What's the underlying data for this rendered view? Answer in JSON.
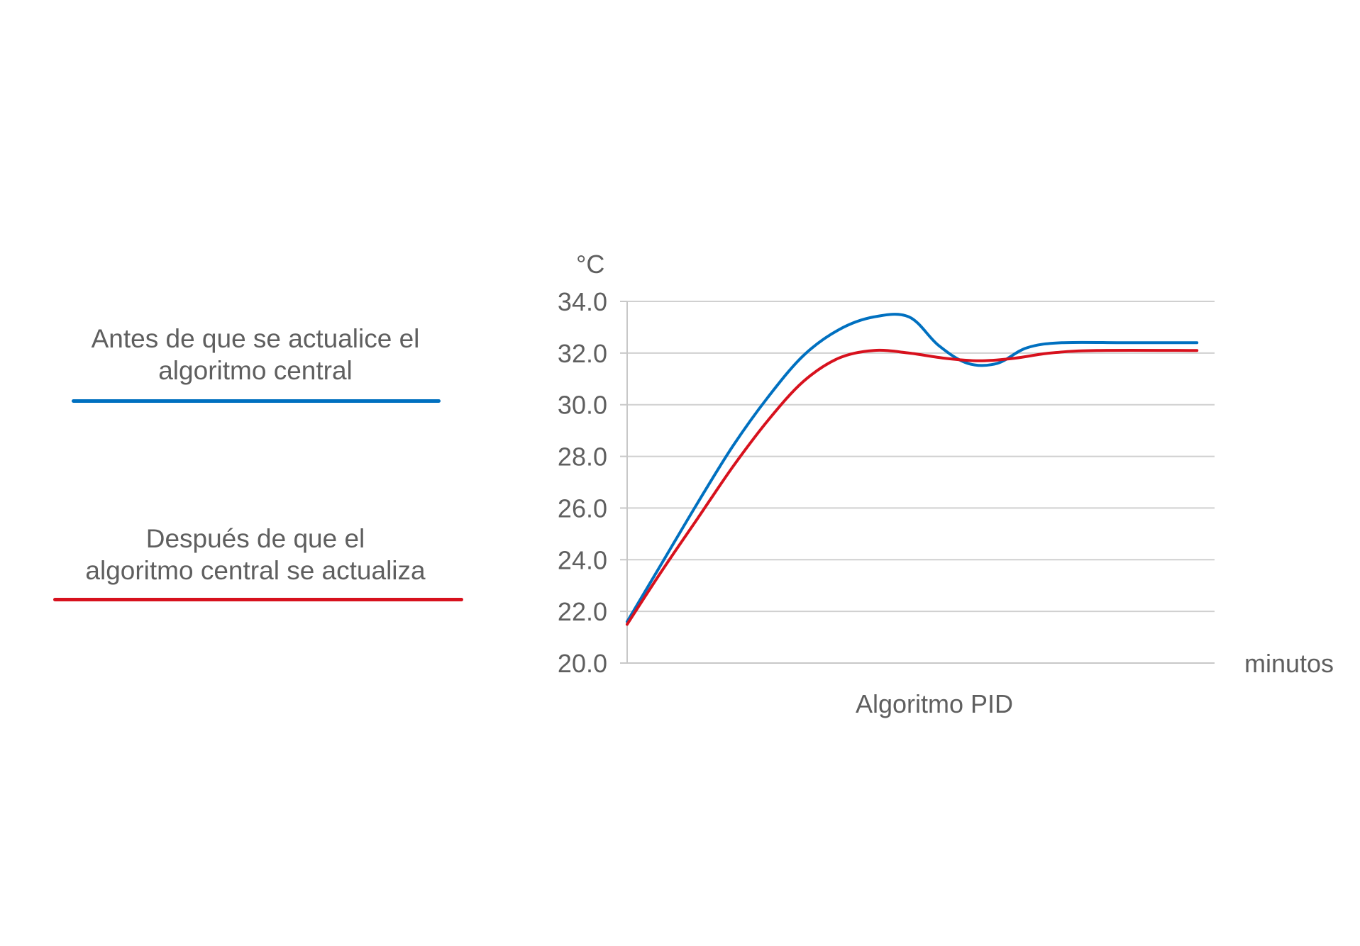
{
  "legend": {
    "items": [
      {
        "label_line1": "Antes de que se actualice el",
        "label_line2": "algoritmo central",
        "color": "#0070c0"
      },
      {
        "label_line1": "Después de que el",
        "label_line2": "algoritmo central se actualiza",
        "color": "#d7111d"
      }
    ]
  },
  "chart_data": {
    "type": "line",
    "title": "Algoritmo PID",
    "xlabel": "minutos",
    "ylabel": "°C",
    "ylim": [
      20.0,
      34.0
    ],
    "yticks": [
      "20.0",
      "22.0",
      "24.0",
      "26.0",
      "28.0",
      "30.0",
      "32.0",
      "34.0"
    ],
    "xlim": [
      0,
      100
    ],
    "grid": true,
    "legend_position": "left",
    "series": [
      {
        "name": "Antes de que se actualice el algoritmo central",
        "color": "#0070c0",
        "points": [
          [
            0,
            21.6
          ],
          [
            6,
            23.9
          ],
          [
            12,
            26.2
          ],
          [
            18,
            28.4
          ],
          [
            24,
            30.3
          ],
          [
            30,
            31.9
          ],
          [
            36,
            32.9
          ],
          [
            42,
            33.4
          ],
          [
            48,
            33.4
          ],
          [
            53,
            32.3
          ],
          [
            58,
            31.6
          ],
          [
            63,
            31.6
          ],
          [
            68,
            32.2
          ],
          [
            74,
            32.4
          ],
          [
            85,
            32.4
          ],
          [
            97,
            32.4
          ]
        ]
      },
      {
        "name": "Después de que el algoritmo central se actualiza",
        "color": "#d7111d",
        "points": [
          [
            0,
            21.5
          ],
          [
            6,
            23.6
          ],
          [
            12,
            25.6
          ],
          [
            18,
            27.6
          ],
          [
            24,
            29.4
          ],
          [
            30,
            30.9
          ],
          [
            36,
            31.8
          ],
          [
            42,
            32.1
          ],
          [
            48,
            32.0
          ],
          [
            54,
            31.8
          ],
          [
            60,
            31.7
          ],
          [
            66,
            31.8
          ],
          [
            72,
            32.0
          ],
          [
            80,
            32.1
          ],
          [
            97,
            32.1
          ]
        ]
      }
    ]
  }
}
